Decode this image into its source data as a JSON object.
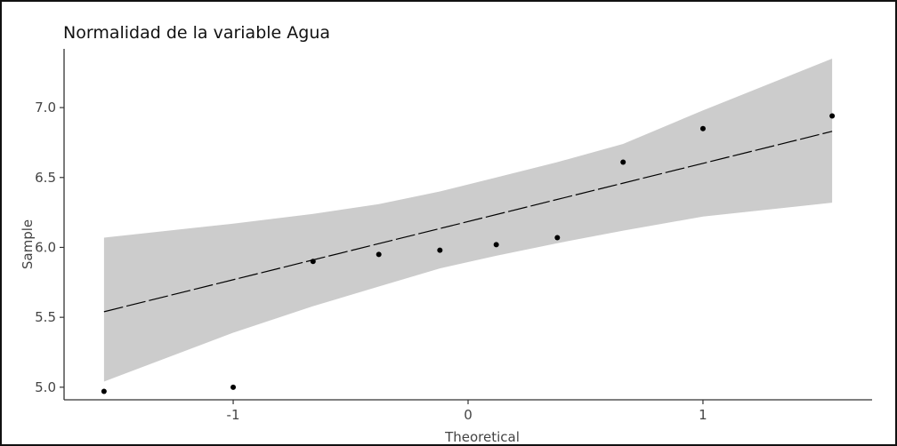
{
  "chart_data": {
    "type": "scatter",
    "title": "Normalidad de la variable Agua",
    "xlabel": "Theoretical",
    "ylabel": "Sample",
    "xlim": [
      -1.72,
      1.72
    ],
    "ylim": [
      4.91,
      7.42
    ],
    "x_ticks": [
      -1,
      0,
      1
    ],
    "x_tick_labels": [
      "-1",
      "0",
      "1"
    ],
    "y_ticks": [
      5.0,
      5.5,
      6.0,
      6.5,
      7.0
    ],
    "y_tick_labels": [
      "5.0",
      "5.5",
      "6.0",
      "6.5",
      "7.0"
    ],
    "grid": false,
    "series": [
      {
        "points": [
          {
            "x": -1.55,
            "y": 4.97
          },
          {
            "x": -1.0,
            "y": 5.0
          },
          {
            "x": -0.66,
            "y": 5.9
          },
          {
            "x": -0.38,
            "y": 5.95
          },
          {
            "x": -0.12,
            "y": 5.98
          },
          {
            "x": 0.12,
            "y": 6.02
          },
          {
            "x": 0.38,
            "y": 6.07
          },
          {
            "x": 0.66,
            "y": 6.61
          },
          {
            "x": 1.0,
            "y": 6.85
          },
          {
            "x": 1.55,
            "y": 6.94
          }
        ]
      }
    ],
    "reference_line": {
      "x": [
        -1.55,
        1.55
      ],
      "y": [
        5.54,
        6.83
      ]
    },
    "confidence_band": {
      "x": [
        -1.55,
        -1.0,
        -0.66,
        -0.38,
        -0.12,
        0.12,
        0.38,
        0.66,
        1.0,
        1.55
      ],
      "lower": [
        5.04,
        5.39,
        5.58,
        5.72,
        5.85,
        5.94,
        6.03,
        6.12,
        6.22,
        6.32
      ],
      "upper": [
        6.07,
        6.17,
        6.24,
        6.31,
        6.4,
        6.5,
        6.61,
        6.74,
        6.98,
        7.35
      ]
    },
    "colors": {
      "points": "#000000",
      "band": "#cccccc",
      "line": "#000000",
      "axis": "#333333"
    }
  }
}
